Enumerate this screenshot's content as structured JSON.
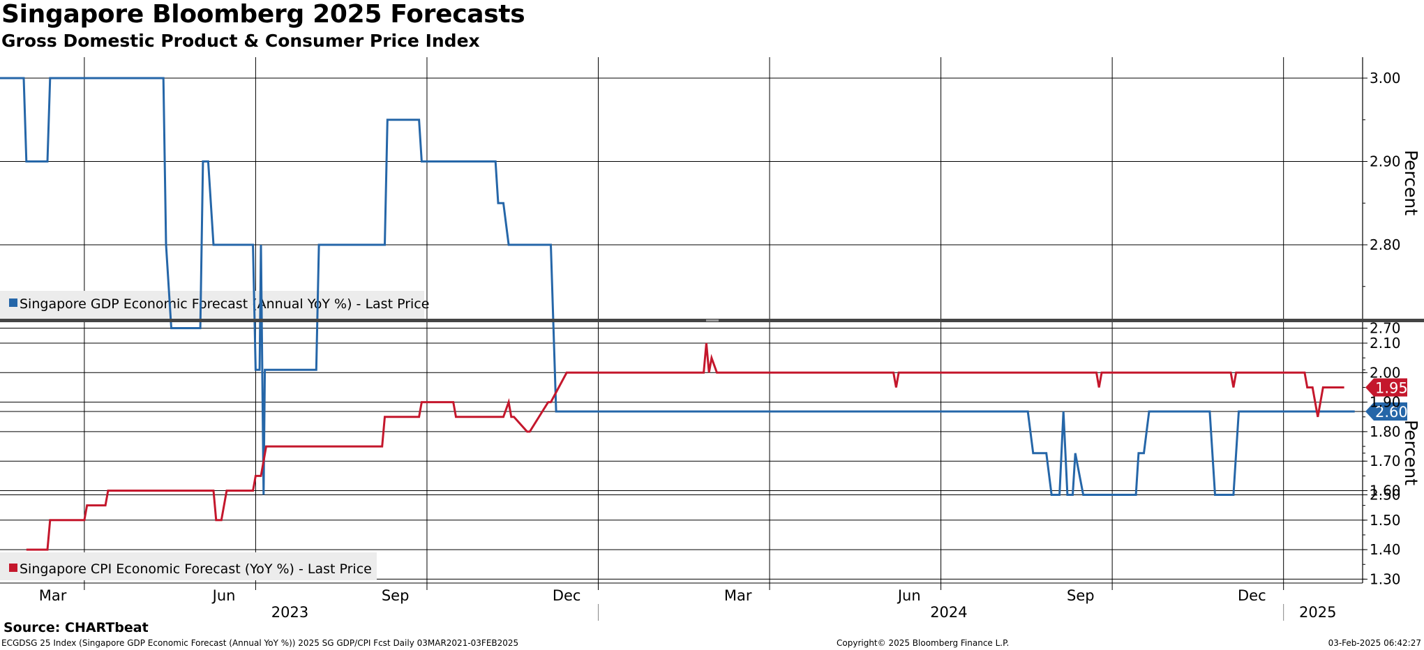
{
  "header": {
    "title": "Singapore Bloomberg 2025 Forecasts",
    "subtitle": "Gross Domestic Product & Consumer Price Index"
  },
  "footer": {
    "source": "Source: CHARTbeat",
    "ticker_info": "ECGDSG 25 Index (Singapore GDP Economic Forecast (Annual YoY %)) 2025 SG GDP/CPI Fcst  Daily 03MAR2021-03FEB2025",
    "copyright": "Copyright© 2025 Bloomberg Finance L.P.",
    "timestamp": "03-Feb-2025 06:42:27"
  },
  "colors": {
    "gdp": "#2566a8",
    "cpi": "#c4172c",
    "grid": "#000000",
    "divider": "#444444"
  },
  "chart_data": [
    {
      "type": "line",
      "panel": "top",
      "title": "Singapore GDP Economic Forecast",
      "ylabel": "Percent",
      "ylim": [
        2.4,
        3.05
      ],
      "yticks": [
        "3.00",
        "2.90",
        "2.80",
        "2.70",
        "2.60",
        "2.50"
      ],
      "ytick_values": [
        3.0,
        2.9,
        2.8,
        2.7,
        2.6,
        2.5
      ],
      "last_label": "2.60",
      "last_value": 2.6,
      "series": [
        {
          "name": "Singapore GDP Economic Forecast (Annual YoY %) - Last Price",
          "x": [
            0,
            0.9,
            1.0,
            1.8,
            1.9,
            6.2,
            6.3,
            6.5,
            7.6,
            7.7,
            7.9,
            8.1,
            9.6,
            9.7,
            9.85,
            9.9,
            10.0,
            10.05,
            10.15,
            12.0,
            12.1,
            14.6,
            14.7,
            15.9,
            16.0,
            18.8,
            18.9,
            19.1,
            19.3,
            20.9,
            21.1,
            39.0,
            39.2,
            39.7,
            39.9,
            40.2,
            40.35,
            40.5,
            40.7,
            40.8,
            41.1,
            43.1,
            43.2,
            43.4,
            43.6,
            45.9,
            46.1,
            46.8,
            47.0,
            51.4
          ],
          "y": [
            3.0,
            3.0,
            2.9,
            2.9,
            3.0,
            3.0,
            2.8,
            2.7,
            2.7,
            2.9,
            2.9,
            2.8,
            2.8,
            2.65,
            2.65,
            2.8,
            2.5,
            2.65,
            2.65,
            2.65,
            2.8,
            2.8,
            2.95,
            2.95,
            2.9,
            2.9,
            2.85,
            2.85,
            2.8,
            2.8,
            2.6,
            2.6,
            2.55,
            2.55,
            2.5,
            2.5,
            2.6,
            2.5,
            2.5,
            2.55,
            2.5,
            2.5,
            2.55,
            2.55,
            2.6,
            2.6,
            2.5,
            2.5,
            2.6,
            2.6
          ]
        }
      ]
    },
    {
      "type": "line",
      "panel": "bottom",
      "title": "Singapore CPI Economic Forecast",
      "ylabel": "Percent",
      "ylim": [
        1.28,
        2.16
      ],
      "yticks": [
        "2.10",
        "2.00",
        "1.90",
        "1.80",
        "1.70",
        "1.60",
        "1.50",
        "1.40",
        "1.30"
      ],
      "ytick_values": [
        2.1,
        2.0,
        1.9,
        1.8,
        1.7,
        1.6,
        1.5,
        1.4,
        1.3
      ],
      "last_label": "1.95",
      "last_value": 1.95,
      "series": [
        {
          "name": "Singapore CPI Economic Forecast (YoY %) - Last Price",
          "x": [
            1.0,
            1.8,
            1.9,
            3.2,
            3.3,
            4.0,
            4.1,
            8.1,
            8.2,
            8.4,
            8.6,
            9.6,
            9.7,
            9.9,
            10.0,
            10.1,
            14.5,
            14.6,
            15.9,
            16.0,
            17.2,
            17.3,
            19.1,
            19.3,
            19.4,
            19.5,
            20.0,
            20.1,
            20.8,
            20.9,
            21.5,
            21.6,
            26.7,
            26.8,
            26.9,
            27.0,
            27.2,
            33.9,
            34.0,
            34.1,
            41.6,
            41.7,
            41.8,
            46.7,
            46.8,
            46.9,
            49.5,
            49.6,
            49.8,
            50.0,
            50.2,
            51.0
          ],
          "y": [
            1.4,
            1.4,
            1.5,
            1.5,
            1.55,
            1.55,
            1.6,
            1.6,
            1.5,
            1.5,
            1.6,
            1.6,
            1.65,
            1.65,
            1.7,
            1.75,
            1.75,
            1.85,
            1.85,
            1.9,
            1.9,
            1.85,
            1.85,
            1.9,
            1.85,
            1.85,
            1.8,
            1.8,
            1.9,
            1.9,
            2.0,
            2.0,
            2.0,
            2.1,
            2.0,
            2.05,
            2.0,
            2.0,
            1.95,
            2.0,
            2.0,
            1.95,
            2.0,
            2.0,
            1.95,
            2.0,
            2.0,
            1.95,
            1.95,
            1.85,
            1.95,
            1.95
          ]
        }
      ]
    }
  ],
  "x_axis": {
    "months": [
      {
        "label": "Mar",
        "x": 2
      },
      {
        "label": "Jun",
        "x": 8.5
      },
      {
        "label": "Sep",
        "x": 15
      },
      {
        "label": "Dec",
        "x": 21.5
      },
      {
        "label": "Mar",
        "x": 28
      },
      {
        "label": "Jun",
        "x": 34.5
      },
      {
        "label": "Sep",
        "x": 41
      },
      {
        "label": "Dec",
        "x": 47.5
      }
    ],
    "years": [
      {
        "label": "2023",
        "x": 11
      },
      {
        "label": "2024",
        "x": 36
      },
      {
        "label": "2025",
        "x": 50
      }
    ],
    "gridlines": [
      3.2,
      9.7,
      16.2,
      22.7,
      29.2,
      35.7,
      42.2,
      48.7
    ],
    "year_dividers": [
      22.7,
      48.7
    ],
    "xlim": [
      0,
      51.7
    ]
  }
}
